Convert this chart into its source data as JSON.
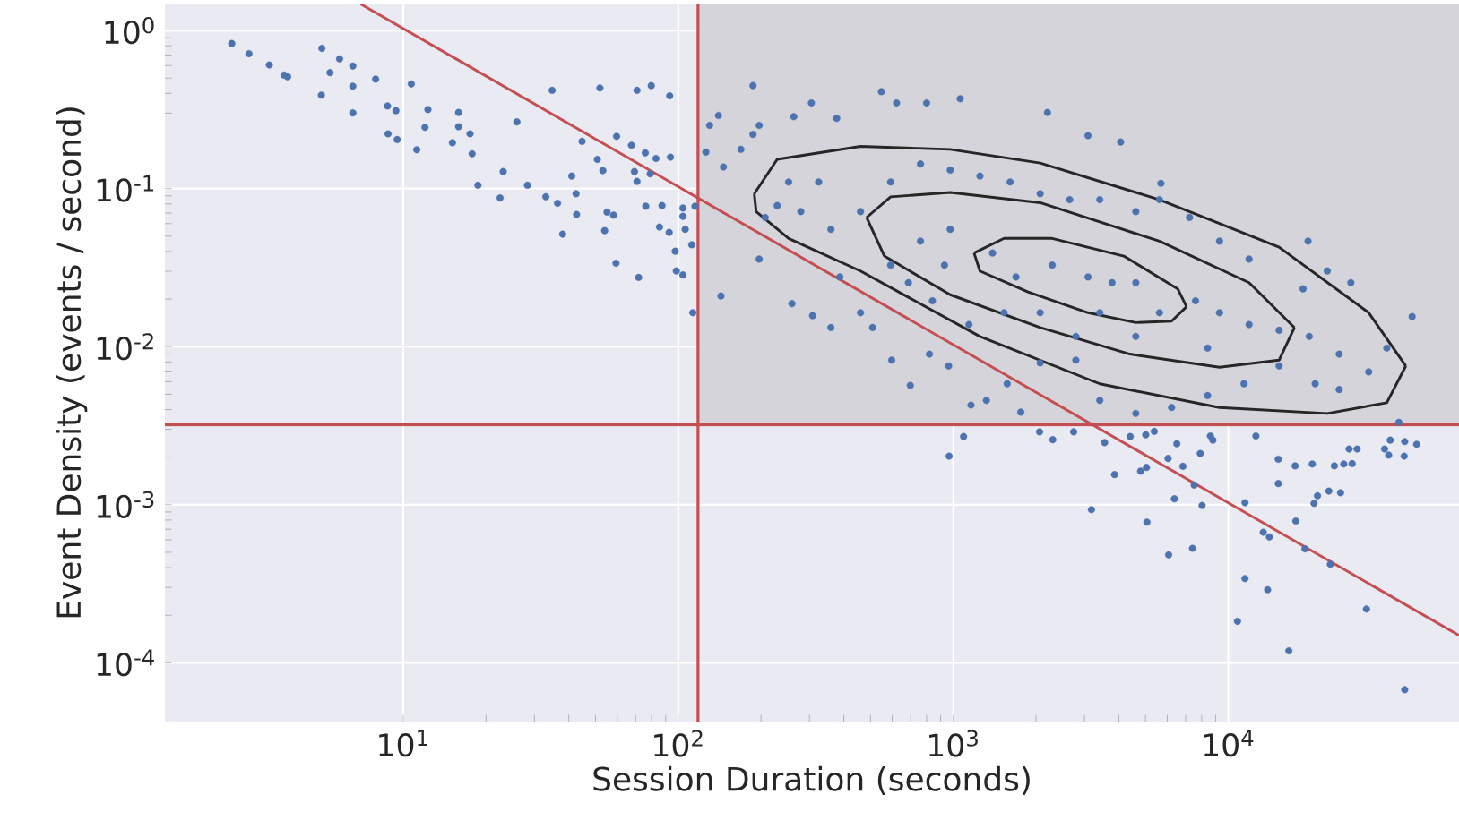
{
  "chart_data": {
    "type": "scatter",
    "xlabel": "Session Duration (seconds)",
    "ylabel": "Event Density (events / second)",
    "log": "xy",
    "grid": true,
    "marker": "circle",
    "xlim": [
      1.36,
      69000
    ],
    "ylim": [
      4.25e-05,
      1.48
    ],
    "xticks": [
      {
        "value": 10,
        "label": "10$^{1}$"
      },
      {
        "value": 100,
        "label": "10$^{2}$"
      },
      {
        "value": 1000,
        "label": "10$^{3}$"
      },
      {
        "value": 10000,
        "label": "10$^{4}$"
      }
    ],
    "yticks": [
      {
        "value": 0.0001,
        "label": "10$^{-4}$"
      },
      {
        "value": 0.001,
        "label": "10$^{-3}$"
      },
      {
        "value": 0.01,
        "label": "10$^{-2}$"
      },
      {
        "value": 0.1,
        "label": "10$^{-1}$"
      },
      {
        "value": 1,
        "label": "10$^{0}$"
      }
    ],
    "ref_lines": [
      {
        "axis": "x",
        "value": 118,
        "color": "#c44e52"
      },
      {
        "axis": "y",
        "value": 0.0032,
        "color": "#c44e52"
      }
    ],
    "bands": [
      {
        "axis": "x",
        "from": 118,
        "to": 69000,
        "color": "#d4d4da"
      }
    ],
    "series": [
      {
        "color": "#4c72b0",
        "x": [
          2.38,
          2.75,
          3.26,
          3.69,
          3.8,
          5.06,
          5.42,
          5.87,
          6.56,
          6.56,
          5.04,
          6.56,
          7.94,
          8.77,
          9.41,
          8.81,
          9.51,
          10.7,
          12.3,
          12.0,
          11.2,
          15.9,
          15.9,
          17.5,
          15.1,
          17.8,
          25.9,
          34.8,
          18.7,
          23.1,
          22.5,
          28.3,
          33.0,
          36.4,
          38.0,
          41.0,
          42.5,
          42.7,
          44.7,
          51.9,
          70.8,
          79.8,
          93.1,
          59.7,
          67.6,
          75.9,
          83.0,
          93.7,
          50.8,
          53.2,
          69.3,
          70.8,
          79.1,
          55.1,
          58.2,
          54.0,
          59.4,
          71.8,
          76.2,
          87.3,
          85.5,
          92.7,
          104,
          104,
          106,
          112,
          97.5,
          98.4,
          104,
          115
        ],
        "values": [
          0.826,
          0.713,
          0.605,
          0.522,
          0.509,
          0.771,
          0.541,
          0.661,
          0.596,
          0.444,
          0.39,
          0.301,
          0.492,
          0.333,
          0.311,
          0.222,
          0.204,
          0.459,
          0.316,
          0.244,
          0.176,
          0.303,
          0.246,
          0.222,
          0.195,
          0.166,
          0.264,
          0.418,
          0.105,
          0.128,
          0.0873,
          0.105,
          0.0887,
          0.0807,
          0.0515,
          0.12,
          0.0927,
          0.0686,
          0.199,
          0.433,
          0.418,
          0.448,
          0.386,
          0.214,
          0.188,
          0.168,
          0.155,
          0.158,
          0.153,
          0.13,
          0.128,
          0.111,
          0.124,
          0.071,
          0.0679,
          0.0542,
          0.0337,
          0.0274,
          0.0773,
          0.078,
          0.0571,
          0.0528,
          0.0753,
          0.0667,
          0.0552,
          0.0441,
          0.0401,
          0.0301,
          0.0284,
          0.0773
        ]
      },
      {
        "color": "#4c72b0",
        "x": [
          966,
          1090,
          2060,
          2300,
          2740,
          3180,
          3550,
          3860,
          4400,
          4800,
          5040,
          5010,
          5060,
          5380,
          6070,
          6040,
          6370,
          6500,
          6840,
          7410,
          7520,
          7910,
          8030,
          8610,
          8790,
          10800,
          11500,
          11500,
          12600,
          13400,
          13900,
          14100,
          15200,
          15200,
          16600,
          17500,
          17600,
          19000,
          20200,
          20500,
          21100,
          23200,
          23500,
          24300,
          25600,
          26300,
          28200,
          31800,
          38300,
          38800,
          43600,
          43800,
          43800,
          48400,
          27500,
          29400,
          37000
        ],
        "values": [
          0.00203,
          0.0027,
          0.00289,
          0.00258,
          0.00289,
          0.000931,
          0.00247,
          0.00155,
          0.0027,
          0.00163,
          0.00172,
          0.00277,
          0.000776,
          0.00291,
          0.000482,
          0.00196,
          0.00109,
          0.00243,
          0.00175,
          0.00053,
          0.00133,
          0.00211,
          0.000989,
          0.00272,
          0.00256,
          0.000183,
          0.000341,
          0.00103,
          0.00272,
          0.00067,
          0.00029,
          0.000625,
          0.00194,
          0.00136,
          0.000119,
          0.00176,
          0.000789,
          0.000526,
          0.00181,
          0.00102,
          0.00114,
          0.00122,
          0.00042,
          0.00176,
          0.00119,
          0.00181,
          0.00182,
          0.000219,
          0.00206,
          0.00256,
          0.00203,
          0.00251,
          6.76e-05,
          0.00241,
          0.00225,
          0.00225,
          0.00225
        ]
      },
      {
        "color": "#4c72b0",
        "x": [
          187,
          130,
          140,
          197,
          263,
          305,
          377,
          548,
          622,
          800,
          1060,
          2200,
          3090,
          4060,
          5690,
          19500,
          46600,
          41700,
          126,
          146,
          169,
          187,
          113,
          143,
          197,
          259,
          308,
          359,
          387,
          460,
          509,
          597,
          698,
          819,
          962,
          1160,
          1320,
          1570,
          1760,
          2070,
          2790,
          3410,
          4610,
          6220,
          8410,
          11400,
          15300,
          20700,
          25300,
          32400,
          37700,
          27900,
          22900,
          18700,
          11900,
          9290,
          7230,
          5620,
          4610,
          3410,
          2650,
          2070,
          1610,
          1250,
          975,
          760,
          592,
          460,
          359,
          279,
          229,
          207,
          252,
          324,
          760,
          975,
          1390,
          1690,
          2290,
          3090,
          3780,
          4610,
          5620,
          7600,
          9290,
          11900,
          15300,
          19700,
          25300,
          2790,
          2070,
          1530,
          1140,
          840,
          687,
          592,
          929,
          3410,
          4610,
          8410
        ],
        "values": [
          0.448,
          0.251,
          0.29,
          0.251,
          0.285,
          0.348,
          0.278,
          0.41,
          0.348,
          0.348,
          0.37,
          0.303,
          0.216,
          0.197,
          0.108,
          0.0465,
          0.0155,
          0.00332,
          0.17,
          0.137,
          0.177,
          0.22,
          0.0164,
          0.0209,
          0.0358,
          0.0187,
          0.0157,
          0.0132,
          0.0276,
          0.0164,
          0.0132,
          0.00822,
          0.00568,
          0.00897,
          0.00755,
          0.00427,
          0.00457,
          0.00582,
          0.00385,
          0.00789,
          0.00822,
          0.00457,
          0.00378,
          0.00412,
          0.0049,
          0.00582,
          0.00755,
          0.00582,
          0.00535,
          0.00692,
          0.00979,
          0.0254,
          0.0301,
          0.0232,
          0.0358,
          0.0465,
          0.0656,
          0.0851,
          0.0715,
          0.0851,
          0.0851,
          0.0927,
          0.11,
          0.12,
          0.131,
          0.143,
          0.11,
          0.0715,
          0.0552,
          0.0715,
          0.078,
          0.0656,
          0.11,
          0.11,
          0.0465,
          0.0552,
          0.0391,
          0.0276,
          0.0328,
          0.0276,
          0.0254,
          0.0254,
          0.0164,
          0.0195,
          0.0164,
          0.0138,
          0.0127,
          0.0116,
          0.00897,
          0.0116,
          0.0164,
          0.0164,
          0.0138,
          0.0195,
          0.0254,
          0.0328,
          0.0328,
          0.0164,
          0.0116,
          0.00979
        ]
      },
      {
        "type": "line",
        "marker": "none",
        "color": "#c44e52",
        "x": [
          7,
          69000
        ],
        "values": [
          1.47,
          0.000149
        ]
      },
      {
        "type": "line",
        "marker": "none",
        "color": "#262626",
        "x": [
          189,
          229,
          460,
          975,
          2070,
          5620,
          15300,
          32400,
          44200
        ],
        "values": [
          0.0927,
          0.153,
          0.185,
          0.177,
          0.145,
          0.0851,
          0.0426,
          0.0164,
          0.00755
        ]
      },
      {
        "type": "line",
        "marker": "none",
        "color": "#262626",
        "x": [
          189,
          192,
          252,
          460,
          1250,
          3410,
          9290,
          22900,
          37700,
          44200
        ],
        "values": [
          0.0927,
          0.0715,
          0.0484,
          0.0301,
          0.0116,
          0.00582,
          0.00412,
          0.00378,
          0.00442,
          0.00755
        ]
      },
      {
        "type": "line",
        "marker": "none",
        "color": "#262626",
        "x": [
          484,
          592,
          975,
          2070,
          5620,
          11900,
          17400
        ],
        "values": [
          0.0656,
          0.0887,
          0.0944,
          0.0814,
          0.0465,
          0.0254,
          0.0132
        ]
      },
      {
        "type": "line",
        "marker": "none",
        "color": "#262626",
        "x": [
          484,
          562,
          975,
          2070,
          4390,
          9290,
          15300,
          17400
        ],
        "values": [
          0.0656,
          0.0374,
          0.0213,
          0.0132,
          0.00897,
          0.00741,
          0.00822,
          0.0132
        ]
      },
      {
        "type": "line",
        "marker": "none",
        "color": "#262626",
        "x": [
          1190,
          1530,
          2290,
          4170,
          6550,
          7050
        ],
        "values": [
          0.0391,
          0.0484,
          0.0484,
          0.0374,
          0.0232,
          0.0179
        ]
      },
      {
        "type": "line",
        "marker": "none",
        "color": "#262626",
        "x": [
          1190,
          1250,
          1870,
          3090,
          4610,
          6220,
          7050
        ],
        "values": [
          0.0391,
          0.0301,
          0.0222,
          0.0164,
          0.0142,
          0.0145,
          0.0179
        ]
      }
    ]
  }
}
